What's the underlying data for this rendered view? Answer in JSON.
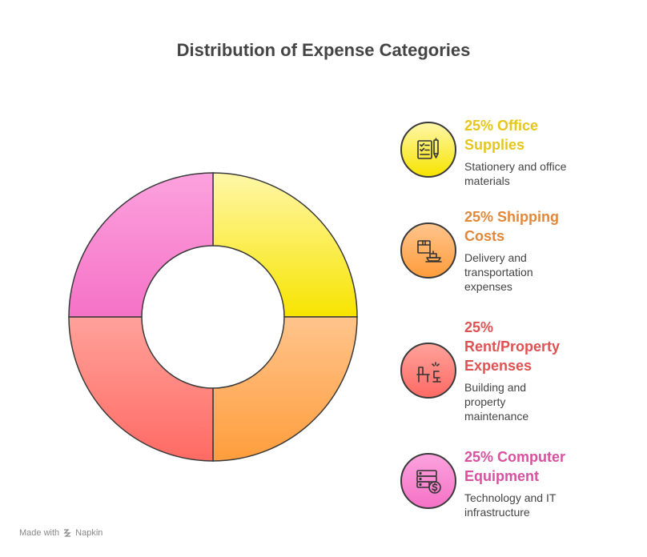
{
  "title": "Distribution of Expense Categories",
  "footer": {
    "made_with": "Made with",
    "brand": "Napkin"
  },
  "colors": {
    "office": "#e6c619",
    "shipping": "#e2883a",
    "rent": "#df5252",
    "computer": "#d9509f"
  },
  "legend": [
    {
      "heading": "25% Office Supplies",
      "lines": [
        "25% Office",
        "Supplies"
      ],
      "description": [
        "Stationery and office",
        "materials"
      ],
      "icon": "office-supplies-icon"
    },
    {
      "heading": "25% Shipping Costs",
      "lines": [
        "25% Shipping",
        "Costs"
      ],
      "description": [
        "Delivery and",
        "transportation",
        "expenses"
      ],
      "icon": "shipping-icon"
    },
    {
      "heading": "25% Rent/Property Expenses",
      "lines": [
        "25%",
        "Rent/Property",
        "Expenses"
      ],
      "description": [
        "Building and",
        "property",
        "maintenance"
      ],
      "icon": "office-desk-icon"
    },
    {
      "heading": "25% Computer Equipment",
      "lines": [
        "25% Computer",
        "Equipment"
      ],
      "description": [
        "Technology and IT",
        "infrastructure"
      ],
      "icon": "server-dollar-icon"
    }
  ],
  "chart_data": {
    "type": "pie",
    "subtype": "donut",
    "title": "Distribution of Expense Categories",
    "categories": [
      "Office Supplies",
      "Shipping Costs",
      "Rent/Property Expenses",
      "Computer Equipment"
    ],
    "values": [
      25,
      25,
      25,
      25
    ],
    "unit": "%",
    "legend_position": "right"
  }
}
